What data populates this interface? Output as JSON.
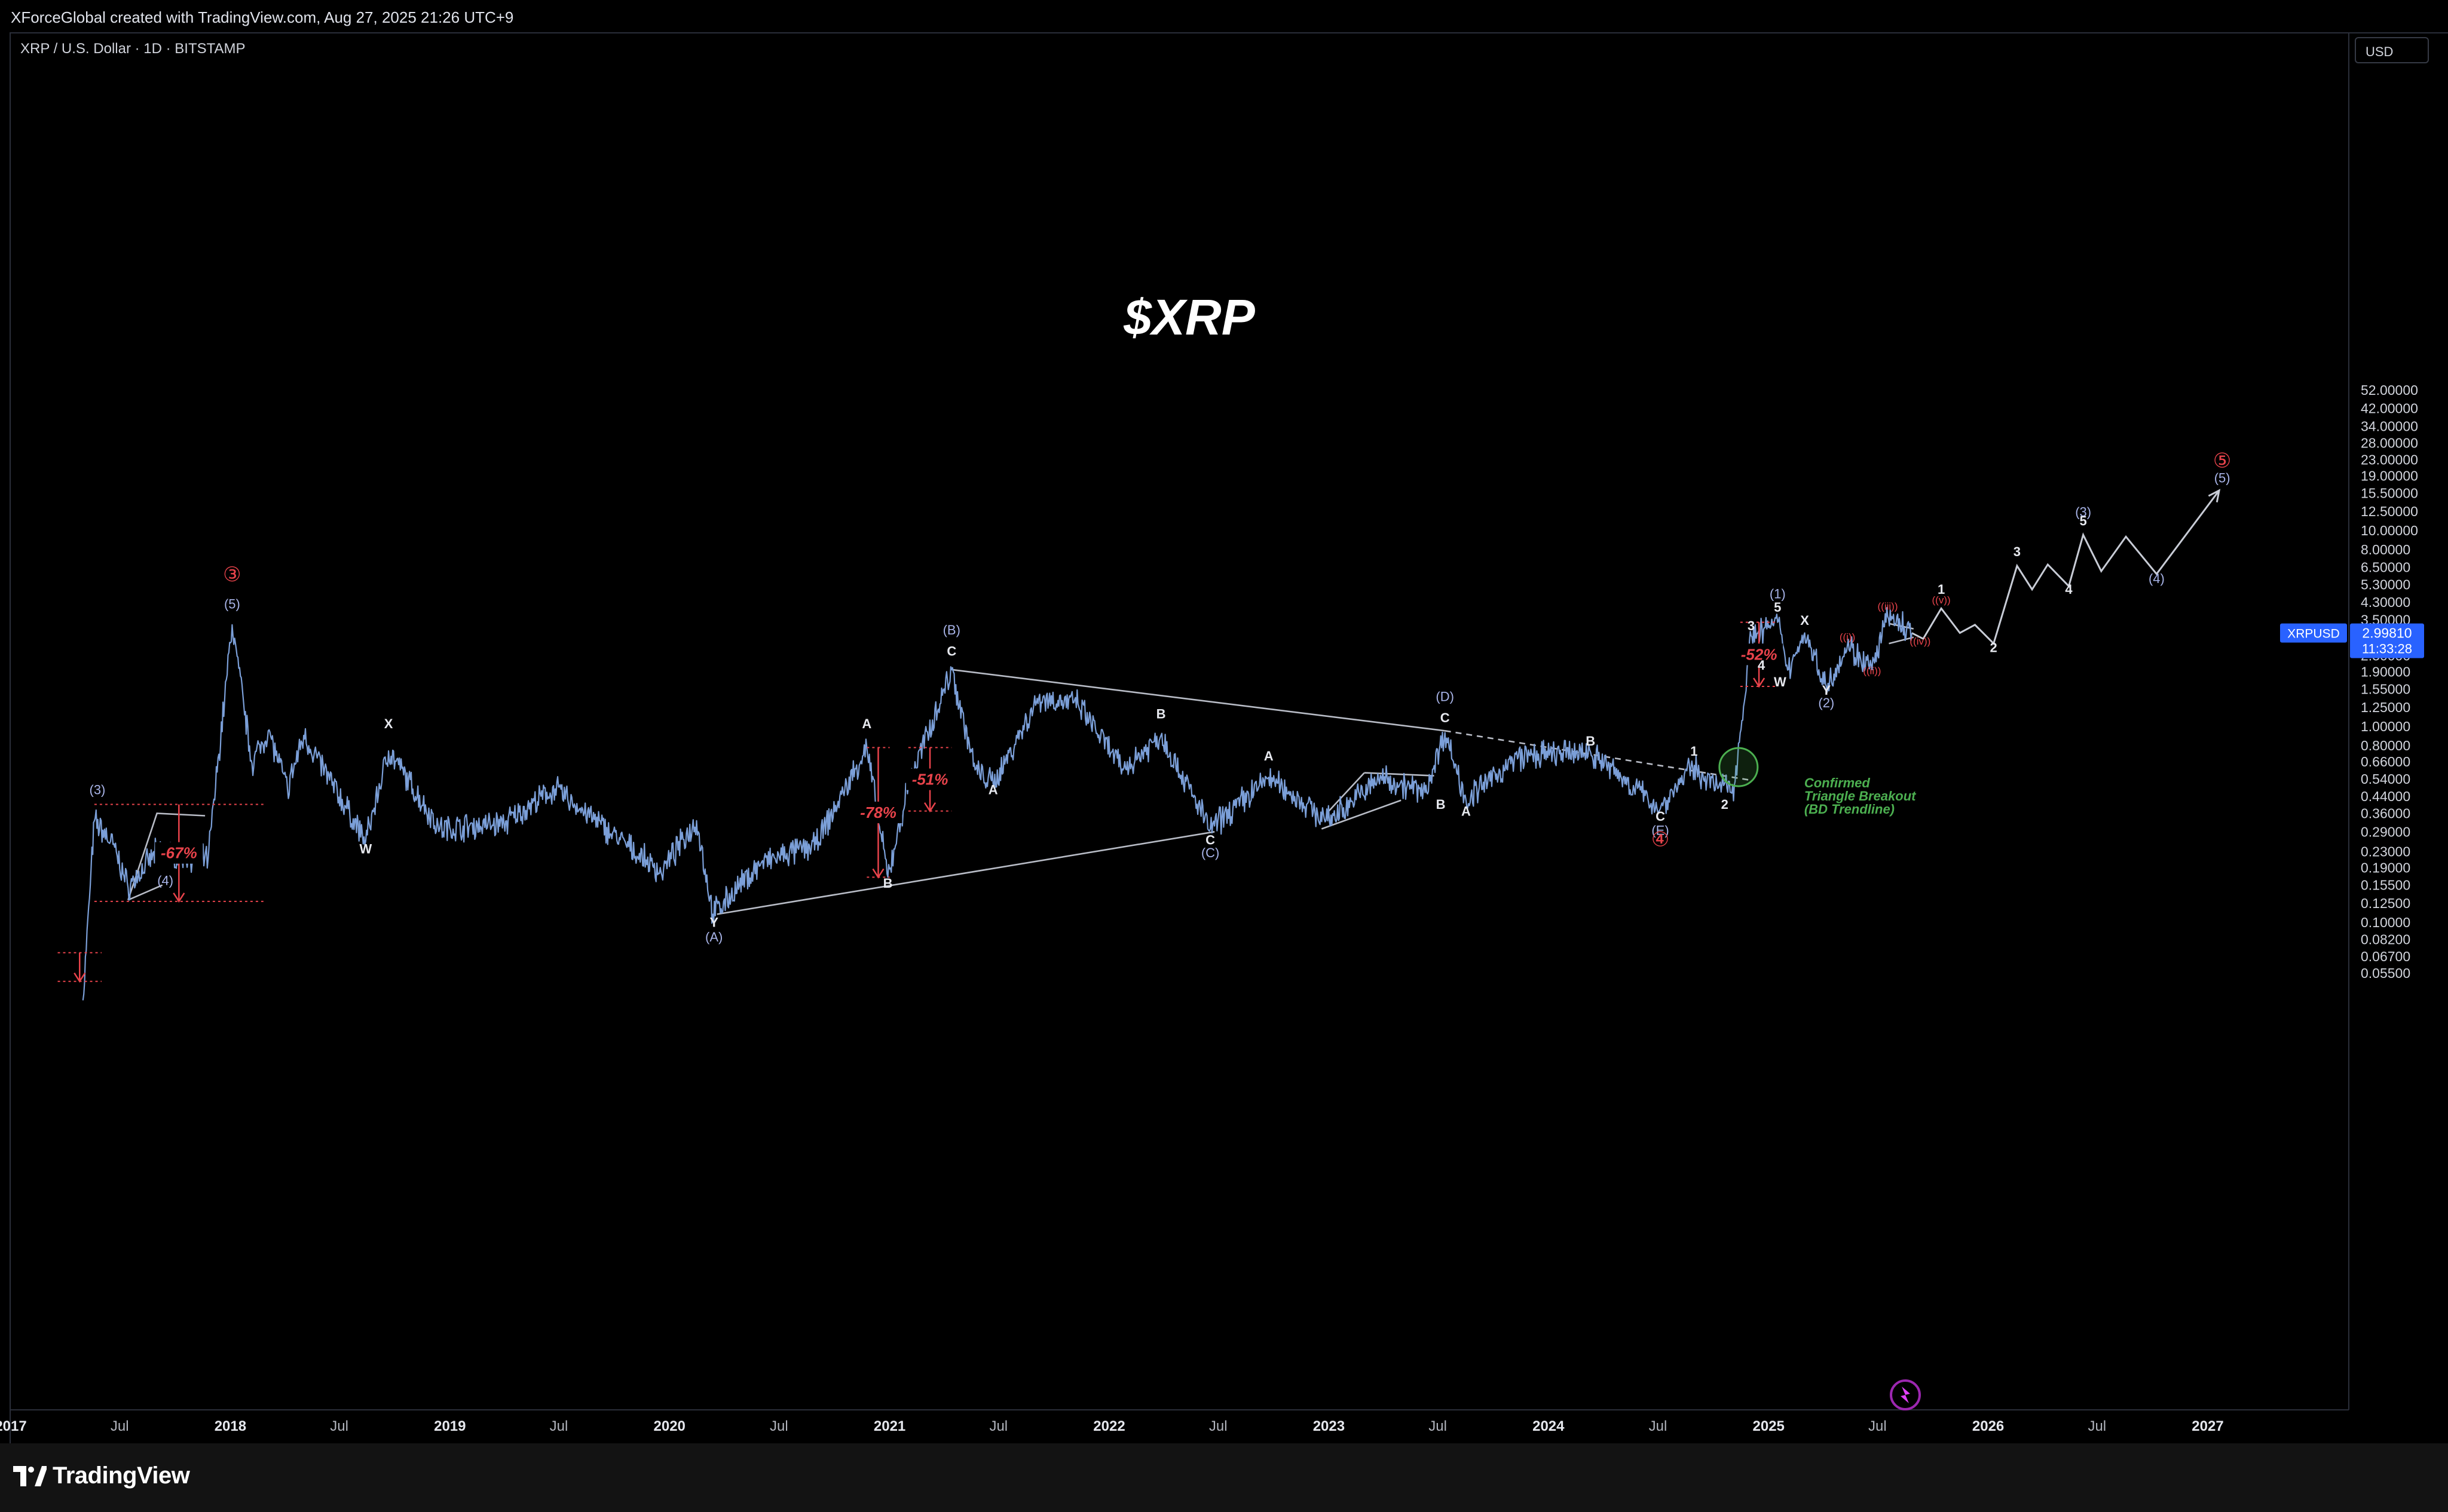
{
  "header": {
    "created_by": "XForceGlobal created with TradingView.com, Aug 27, 2025 21:26 UTC+9"
  },
  "chart_header": {
    "symbol": "XRP / U.S. Dollar · 1D · BITSTAMP",
    "currency_button": "USD"
  },
  "footer": {
    "brand": "TradingView"
  },
  "colors": {
    "background": "#000000",
    "price_line": "#7b9fd8",
    "annotation_red": "#e8434b",
    "breakout_green": "#4caf50",
    "wave_label_degree": "#a8b4e8",
    "price_badge": "#2962ff"
  },
  "chart_data": {
    "type": "line",
    "title": "$XRP",
    "scale": "log",
    "x_ticks": [
      "2017",
      "Jul",
      "2018",
      "Jul",
      "2019",
      "Jul",
      "2020",
      "Jul",
      "2021",
      "Jul",
      "2022",
      "Jul",
      "2023",
      "Jul",
      "2024",
      "Jul",
      "2025",
      "Jul",
      "2026",
      "Jul",
      "2027"
    ],
    "y_ticks": [
      "52.00000",
      "42.00000",
      "34.00000",
      "28.00000",
      "23.00000",
      "19.00000",
      "15.50000",
      "12.50000",
      "10.00000",
      "8.00000",
      "6.50000",
      "5.30000",
      "4.30000",
      "3.50000",
      "2.30000",
      "1.90000",
      "1.55000",
      "1.25000",
      "1.00000",
      "0.80000",
      "0.66000",
      "0.54000",
      "0.44000",
      "0.36000",
      "0.29000",
      "0.23000",
      "0.19000",
      "0.15500",
      "0.12500",
      "0.10000",
      "0.08200",
      "0.06700",
      "0.05500"
    ],
    "last_price": {
      "symbol": "XRPUSD",
      "value": "2.99810",
      "countdown": "11:33:28",
      "price": 2.9981
    },
    "series": [
      {
        "values": [
          {
            "x": "2017-05-01",
            "y": 0.04
          },
          {
            "x": "2017-05-20",
            "y": 0.33
          },
          {
            "x": "2017-06-20",
            "y": 0.25
          },
          {
            "x": "2017-07-15",
            "y": 0.15
          },
          {
            "x": "2017-09-01",
            "y": 0.23
          },
          {
            "x": "2017-11-25",
            "y": 0.21
          },
          {
            "x": "2018-01-04",
            "y": 3.3
          },
          {
            "x": "2018-02-06",
            "y": 0.65
          },
          {
            "x": "2018-03-05",
            "y": 0.95
          },
          {
            "x": "2018-04-06",
            "y": 0.48
          },
          {
            "x": "2018-05-03",
            "y": 0.9
          },
          {
            "x": "2018-08-14",
            "y": 0.26
          },
          {
            "x": "2018-09-21",
            "y": 0.75
          },
          {
            "x": "2018-12-15",
            "y": 0.3
          },
          {
            "x": "2019-04-01",
            "y": 0.32
          },
          {
            "x": "2019-06-25",
            "y": 0.48
          },
          {
            "x": "2019-12-18",
            "y": 0.18
          },
          {
            "x": "2020-02-15",
            "y": 0.33
          },
          {
            "x": "2020-03-13",
            "y": 0.11
          },
          {
            "x": "2020-06-01",
            "y": 0.2
          },
          {
            "x": "2020-09-01",
            "y": 0.25
          },
          {
            "x": "2020-11-24",
            "y": 0.78
          },
          {
            "x": "2020-12-29",
            "y": 0.17
          },
          {
            "x": "2021-02-01",
            "y": 0.5
          },
          {
            "x": "2021-04-14",
            "y": 1.95
          },
          {
            "x": "2021-05-23",
            "y": 0.6
          },
          {
            "x": "2021-06-22",
            "y": 0.51
          },
          {
            "x": "2021-09-06",
            "y": 1.4
          },
          {
            "x": "2021-11-10",
            "y": 1.3
          },
          {
            "x": "2022-01-24",
            "y": 0.6
          },
          {
            "x": "2022-03-28",
            "y": 0.9
          },
          {
            "x": "2022-06-18",
            "y": 0.3
          },
          {
            "x": "2022-09-23",
            "y": 0.55
          },
          {
            "x": "2022-12-30",
            "y": 0.33
          },
          {
            "x": "2023-03-29",
            "y": 0.55
          },
          {
            "x": "2023-06-10",
            "y": 0.46
          },
          {
            "x": "2023-07-13",
            "y": 0.93
          },
          {
            "x": "2023-08-17",
            "y": 0.42
          },
          {
            "x": "2023-11-12",
            "y": 0.7
          },
          {
            "x": "2024-03-11",
            "y": 0.74
          },
          {
            "x": "2024-07-05",
            "y": 0.38
          },
          {
            "x": "2024-08-25",
            "y": 0.62
          },
          {
            "x": "2024-10-10",
            "y": 0.49
          },
          {
            "x": "2024-11-05",
            "y": 0.5
          },
          {
            "x": "2024-12-03",
            "y": 2.9
          },
          {
            "x": "2025-01-16",
            "y": 3.4
          },
          {
            "x": "2025-02-03",
            "y": 1.95
          },
          {
            "x": "2025-03-02",
            "y": 3.0
          },
          {
            "x": "2025-04-07",
            "y": 1.6
          },
          {
            "x": "2025-05-12",
            "y": 2.6
          },
          {
            "x": "2025-06-22",
            "y": 1.95
          },
          {
            "x": "2025-07-18",
            "y": 3.65
          },
          {
            "x": "2025-08-27",
            "y": 2.9981
          }
        ]
      }
    ],
    "projection": [
      {
        "x": "2025-08-27",
        "y": 2.9981
      },
      {
        "x": "2025-09-15",
        "y": 2.8
      },
      {
        "x": "2025-10-15",
        "y": 4.0
      },
      {
        "x": "2025-11-15",
        "y": 3.0
      },
      {
        "x": "2025-12-10",
        "y": 3.3
      },
      {
        "x": "2026-01-10",
        "y": 2.65
      },
      {
        "x": "2026-02-18",
        "y": 6.6
      },
      {
        "x": "2026-03-15",
        "y": 5.0
      },
      {
        "x": "2026-04-10",
        "y": 6.7
      },
      {
        "x": "2026-05-15",
        "y": 5.2
      },
      {
        "x": "2026-06-08",
        "y": 9.5
      },
      {
        "x": "2026-07-08",
        "y": 6.2
      },
      {
        "x": "2026-08-18",
        "y": 9.3
      },
      {
        "x": "2026-10-08",
        "y": 6.0
      },
      {
        "x": "2027-01-20",
        "y": 16.0
      }
    ],
    "trendlines": [
      {
        "style": "solid",
        "points": [
          {
            "x": "2021-04-14",
            "y": 1.95
          },
          {
            "x": "2023-07-13",
            "y": 0.95
          }
        ]
      },
      {
        "style": "dashed",
        "points": [
          {
            "x": "2023-07-13",
            "y": 0.95
          },
          {
            "x": "2024-12-05",
            "y": 0.53
          }
        ]
      },
      {
        "style": "solid",
        "points": [
          {
            "x": "2020-03-20",
            "y": 0.11
          },
          {
            "x": "2022-06-25",
            "y": 0.29
          }
        ]
      },
      {
        "style": "solid",
        "points": [
          {
            "x": "2017-07-15",
            "y": 0.13
          },
          {
            "x": "2017-09-01",
            "y": 0.36
          },
          {
            "x": "2017-11-20",
            "y": 0.35
          }
        ]
      },
      {
        "style": "solid",
        "points": [
          {
            "x": "2017-07-15",
            "y": 0.13
          },
          {
            "x": "2017-09-10",
            "y": 0.155
          }
        ]
      },
      {
        "style": "solid",
        "points": [
          {
            "x": "2022-12-20",
            "y": 0.3
          },
          {
            "x": "2023-05-01",
            "y": 0.42
          }
        ]
      },
      {
        "style": "solid",
        "points": [
          {
            "x": "2023-03-01",
            "y": 0.58
          },
          {
            "x": "2023-06-25",
            "y": 0.56
          }
        ]
      },
      {
        "style": "solid",
        "points": [
          {
            "x": "2023-03-01",
            "y": 0.58
          },
          {
            "x": "2023-01-01",
            "y": 0.37
          }
        ]
      },
      {
        "style": "solid",
        "points": [
          {
            "x": "2025-07-20",
            "y": 3.35
          },
          {
            "x": "2025-08-30",
            "y": 3.15
          }
        ]
      },
      {
        "style": "solid",
        "points": [
          {
            "x": "2025-07-20",
            "y": 2.65
          },
          {
            "x": "2025-08-30",
            "y": 2.85
          }
        ]
      }
    ],
    "retracements": [
      {
        "label": "-67%",
        "x_start": "2017-05-20",
        "x_end": "2018-02-25",
        "y_top": 0.4,
        "y_bottom": 0.128
      },
      {
        "label": "-78%",
        "x_start": "2020-11-24",
        "x_end": "2021-01-01",
        "y_top": 0.78,
        "y_bottom": 0.17
      },
      {
        "label": "-51%",
        "x_start": "2021-02-01",
        "x_end": "2021-04-14",
        "y_top": 0.78,
        "y_bottom": 0.37
      },
      {
        "label": "-52%",
        "x_start": "2024-11-15",
        "x_end": "2025-01-16",
        "y_top": 3.4,
        "y_bottom": 1.6
      },
      {
        "label": "",
        "x_start": "2017-03-20",
        "x_end": "2017-06-01",
        "y_top": 0.07,
        "y_bottom": 0.05
      }
    ],
    "breakout": {
      "x": "2024-11-12",
      "y": 0.62,
      "lines": [
        "Confirmed",
        "Triangle Breakout",
        "(BD Trendline)"
      ]
    },
    "wave_labels": [
      {
        "text": "(3)",
        "x": "2017-05-25",
        "y": 0.45,
        "kind": "degree"
      },
      {
        "text": "(4)",
        "x": "2017-09-15",
        "y": 0.155,
        "kind": "degree"
      },
      {
        "text": "③",
        "x": "2018-01-04",
        "y": 5.5,
        "kind": "circle"
      },
      {
        "text": "(5)",
        "x": "2018-01-04",
        "y": 4.0,
        "kind": "degree"
      },
      {
        "text": "X",
        "x": "2018-09-21",
        "y": 0.98,
        "kind": "minor"
      },
      {
        "text": "W",
        "x": "2018-08-14",
        "y": 0.225,
        "kind": "minor"
      },
      {
        "text": "Y",
        "x": "2020-03-15",
        "y": 0.095,
        "kind": "minor"
      },
      {
        "text": "(A)",
        "x": "2020-03-15",
        "y": 0.08,
        "kind": "degree"
      },
      {
        "text": "A",
        "x": "2020-11-24",
        "y": 0.98,
        "kind": "minor"
      },
      {
        "text": "B",
        "x": "2020-12-29",
        "y": 0.15,
        "kind": "minor"
      },
      {
        "text": "(B)",
        "x": "2021-04-14",
        "y": 2.95,
        "kind": "degree"
      },
      {
        "text": "C",
        "x": "2021-04-14",
        "y": 2.3,
        "kind": "minor"
      },
      {
        "text": "A",
        "x": "2021-06-22",
        "y": 0.45,
        "kind": "minor"
      },
      {
        "text": "B",
        "x": "2022-03-28",
        "y": 1.1,
        "kind": "minor"
      },
      {
        "text": "C",
        "x": "2022-06-18",
        "y": 0.25,
        "kind": "minor"
      },
      {
        "text": "(C)",
        "x": "2022-06-18",
        "y": 0.215,
        "kind": "degree"
      },
      {
        "text": "A",
        "x": "2022-09-23",
        "y": 0.67,
        "kind": "minor"
      },
      {
        "text": "(D)",
        "x": "2023-07-13",
        "y": 1.35,
        "kind": "degree"
      },
      {
        "text": "C",
        "x": "2023-07-13",
        "y": 1.05,
        "kind": "minor"
      },
      {
        "text": "B",
        "x": "2023-07-06",
        "y": 0.38,
        "kind": "minor"
      },
      {
        "text": "A",
        "x": "2023-08-17",
        "y": 0.35,
        "kind": "minor"
      },
      {
        "text": "B",
        "x": "2024-03-11",
        "y": 0.8,
        "kind": "minor"
      },
      {
        "text": "C",
        "x": "2024-07-05",
        "y": 0.33,
        "kind": "minor"
      },
      {
        "text": "(E)",
        "x": "2024-07-05",
        "y": 0.28,
        "kind": "degree"
      },
      {
        "text": "④",
        "x": "2024-07-05",
        "y": 0.245,
        "kind": "circle"
      },
      {
        "text": "1",
        "x": "2024-08-30",
        "y": 0.71,
        "kind": "minor"
      },
      {
        "text": "2",
        "x": "2024-10-20",
        "y": 0.38,
        "kind": "minor"
      },
      {
        "text": "3",
        "x": "2024-12-03",
        "y": 3.1,
        "kind": "minor"
      },
      {
        "text": "4",
        "x": "2024-12-20",
        "y": 1.95,
        "kind": "minor"
      },
      {
        "text": "(1)",
        "x": "2025-01-16",
        "y": 4.5,
        "kind": "degree"
      },
      {
        "text": "5",
        "x": "2025-01-16",
        "y": 3.85,
        "kind": "minor"
      },
      {
        "text": "W",
        "x": "2025-01-20",
        "y": 1.6,
        "kind": "minor"
      },
      {
        "text": "X",
        "x": "2025-03-02",
        "y": 3.3,
        "kind": "minor"
      },
      {
        "text": "Y",
        "x": "2025-04-07",
        "y": 1.45,
        "kind": "minor"
      },
      {
        "text": "(2)",
        "x": "2025-04-07",
        "y": 1.25,
        "kind": "degree"
      },
      {
        "text": "((i))",
        "x": "2025-05-12",
        "y": 2.75,
        "kind": "red"
      },
      {
        "text": "((ii))",
        "x": "2025-06-22",
        "y": 1.85,
        "kind": "red"
      },
      {
        "text": "((iii))",
        "x": "2025-07-18",
        "y": 3.95,
        "kind": "red"
      },
      {
        "text": "((iv))",
        "x": "2025-09-10",
        "y": 2.62,
        "kind": "red"
      },
      {
        "text": "((v))",
        "x": "2025-10-15",
        "y": 4.25,
        "kind": "red"
      },
      {
        "text": "1",
        "x": "2025-10-15",
        "y": 4.75,
        "kind": "minor"
      },
      {
        "text": "2",
        "x": "2026-01-10",
        "y": 2.4,
        "kind": "minor"
      },
      {
        "text": "3",
        "x": "2026-02-18",
        "y": 7.4,
        "kind": "minor"
      },
      {
        "text": "4",
        "x": "2026-05-15",
        "y": 4.75,
        "kind": "minor"
      },
      {
        "text": "(3)",
        "x": "2026-06-08",
        "y": 11.8,
        "kind": "degree"
      },
      {
        "text": "5",
        "x": "2026-06-08",
        "y": 10.6,
        "kind": "minor"
      },
      {
        "text": "(4)",
        "x": "2026-10-08",
        "y": 5.4,
        "kind": "degree"
      },
      {
        "text": "⑤",
        "x": "2027-01-25",
        "y": 21.0,
        "kind": "circle"
      },
      {
        "text": "(5)",
        "x": "2027-01-25",
        "y": 17.6,
        "kind": "degree"
      }
    ]
  }
}
